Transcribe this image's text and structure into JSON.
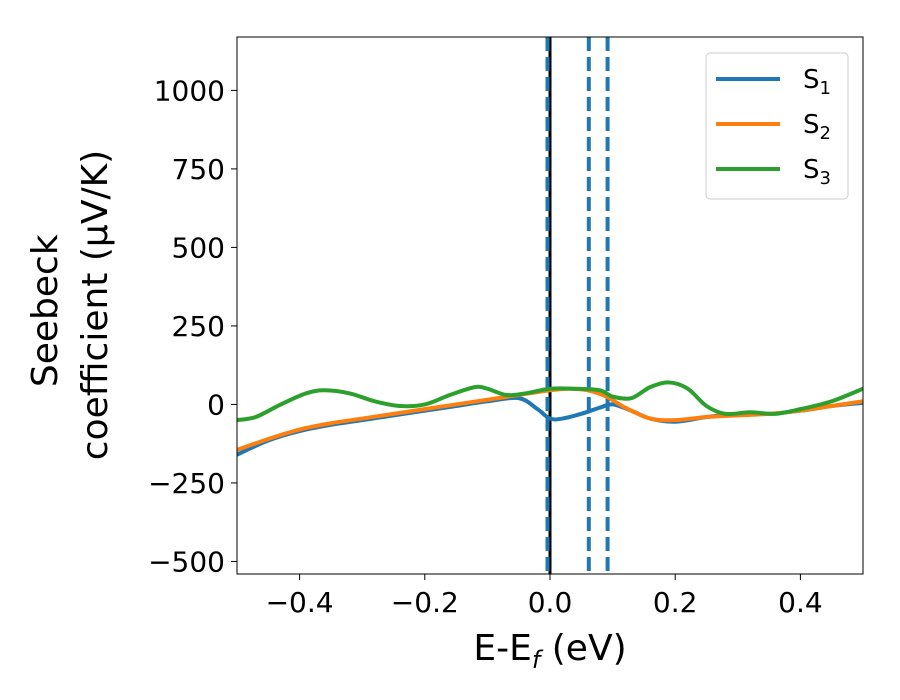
{
  "chart_data": {
    "type": "line",
    "xlabel": "E-E",
    "xlabel_sub": "f",
    "xlabel_unit": " (eV)",
    "ylabel_line1": "Seebeck",
    "ylabel_line2": "coefficient  (μV/K)",
    "xlim": [
      -0.5,
      0.5
    ],
    "ylim": [
      -540,
      1170
    ],
    "xticks": [
      -0.4,
      -0.2,
      0.0,
      0.2,
      0.4
    ],
    "xtick_labels": [
      "−0.4",
      "−0.2",
      "0.0",
      "0.2",
      "0.4"
    ],
    "yticks": [
      -500,
      -250,
      0,
      250,
      500,
      750,
      1000
    ],
    "ytick_labels": [
      "−500",
      "−250",
      "0",
      "250",
      "500",
      "750",
      "1000"
    ],
    "grid": false,
    "legend_position": "top-right",
    "vertical_lines": [
      {
        "x": 0.0,
        "style": "solid",
        "color": "#000000"
      },
      {
        "x": -0.004,
        "style": "dashed",
        "color": "#1f77b4"
      },
      {
        "x": 0.062,
        "style": "dashed",
        "color": "#1f77b4"
      },
      {
        "x": 0.092,
        "style": "dashed",
        "color": "#1f77b4"
      }
    ],
    "series": [
      {
        "name": "S",
        "name_sub": "1",
        "color": "#1f77b4",
        "x": [
          -0.5,
          -0.45,
          -0.4,
          -0.35,
          -0.3,
          -0.25,
          -0.2,
          -0.15,
          -0.1,
          -0.05,
          -0.02,
          0.0,
          0.02,
          0.05,
          0.08,
          0.1,
          0.13,
          0.16,
          0.2,
          0.25,
          0.3,
          0.35,
          0.4,
          0.45,
          0.5
        ],
        "y": [
          -160,
          -115,
          -85,
          -65,
          -50,
          -35,
          -20,
          -5,
          10,
          20,
          -15,
          -45,
          -45,
          -30,
          -10,
          0,
          -20,
          -45,
          -55,
          -40,
          -30,
          -30,
          -20,
          -5,
          5
        ]
      },
      {
        "name": "S",
        "name_sub": "2",
        "color": "#ff7f0e",
        "x": [
          -0.5,
          -0.45,
          -0.4,
          -0.35,
          -0.3,
          -0.25,
          -0.2,
          -0.15,
          -0.1,
          -0.05,
          0.0,
          0.03,
          0.06,
          0.09,
          0.12,
          0.16,
          0.2,
          0.25,
          0.3,
          0.35,
          0.4,
          0.45,
          0.5
        ],
        "y": [
          -145,
          -110,
          -80,
          -60,
          -45,
          -30,
          -15,
          0,
          15,
          30,
          45,
          50,
          45,
          25,
          -10,
          -45,
          -50,
          -40,
          -35,
          -30,
          -20,
          -5,
          10
        ]
      },
      {
        "name": "S",
        "name_sub": "3",
        "color": "#2ca02c",
        "x": [
          -0.5,
          -0.47,
          -0.43,
          -0.39,
          -0.36,
          -0.32,
          -0.28,
          -0.24,
          -0.2,
          -0.16,
          -0.12,
          -0.1,
          -0.07,
          -0.04,
          0.0,
          0.04,
          0.08,
          0.1,
          0.13,
          0.16,
          0.19,
          0.22,
          0.25,
          0.28,
          0.32,
          0.36,
          0.4,
          0.45,
          0.5
        ],
        "y": [
          -50,
          -40,
          0,
          35,
          45,
          35,
          10,
          -5,
          0,
          30,
          55,
          50,
          30,
          35,
          50,
          50,
          45,
          25,
          20,
          55,
          70,
          50,
          -5,
          -30,
          -25,
          -30,
          -15,
          10,
          50
        ]
      }
    ]
  }
}
